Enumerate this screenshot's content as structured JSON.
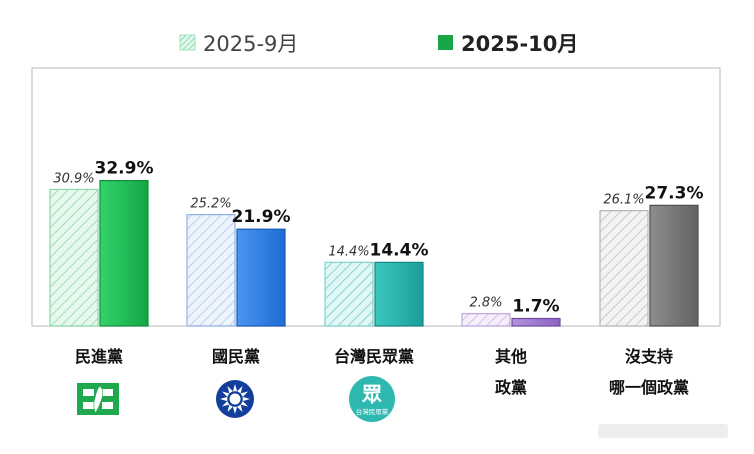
{
  "legend": {
    "prev_label": "2025-9月",
    "curr_label": "2025-10月"
  },
  "colors": {
    "dpp": "#1fbf55",
    "kmt": "#2f7fe0",
    "tpp": "#27b3ad",
    "other": "#9a77c9",
    "none": "#7a7a7a"
  },
  "chart_data": {
    "type": "bar",
    "categories": [
      "民進黨",
      "國民黨",
      "台灣民眾黨",
      "其他政黨",
      "沒支持哪一個政黨"
    ],
    "category_lines": [
      [
        "民進黨"
      ],
      [
        "國民黨"
      ],
      [
        "台灣民眾黨"
      ],
      [
        "其他",
        "政黨"
      ],
      [
        "沒支持",
        "哪一個政黨"
      ]
    ],
    "series": [
      {
        "name": "2025-9月",
        "values": [
          30.9,
          25.2,
          14.4,
          2.8,
          26.1
        ]
      },
      {
        "name": "2025-10月",
        "values": [
          32.9,
          21.9,
          14.4,
          1.7,
          27.3
        ]
      }
    ],
    "value_labels": [
      [
        "30.9%",
        "25.2%",
        "14.4%",
        "2.8%",
        "26.1%"
      ],
      [
        "32.9%",
        "21.9%",
        "14.4%",
        "1.7%",
        "27.3%"
      ]
    ],
    "ylim": [
      0,
      40
    ],
    "legend_position": "top",
    "grid": false,
    "party_logos": [
      "dpp-logo",
      "kmt-emblem",
      "tpp-logo",
      "",
      ""
    ],
    "tpp_logo_text": "台灣民眾黨",
    "tpp_logo_char": "眾"
  }
}
